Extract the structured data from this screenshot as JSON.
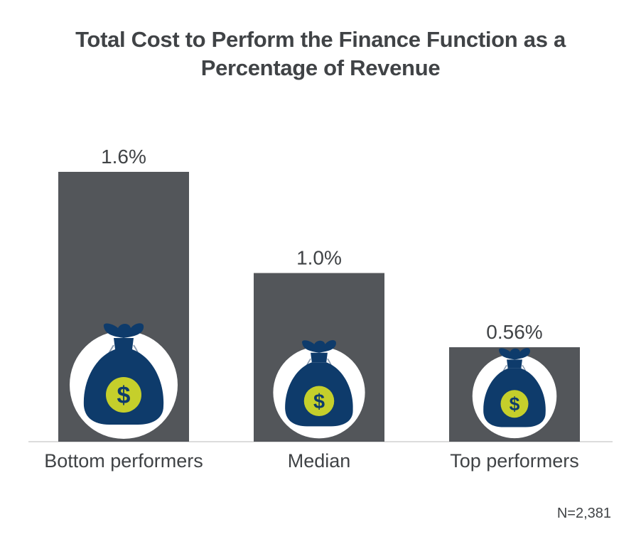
{
  "chart_data": {
    "type": "bar",
    "title_lines": [
      "Total Cost to Perform the Finance Function as a",
      "Percentage of Revenue"
    ],
    "categories": [
      "Bottom performers",
      "Median",
      "Top performers"
    ],
    "values": [
      1.6,
      1.0,
      0.56
    ],
    "value_labels": [
      "1.6%",
      "1.0%",
      "0.56%"
    ],
    "ylim": [
      0,
      2.0
    ],
    "grid": false,
    "legend": "none",
    "note": "N=2,381"
  },
  "colors": {
    "bar": "#53565a",
    "title_text": "#404346",
    "icon_circle": "#ffffff",
    "money_bag": "#0e3b6b",
    "coin": "#c5cf2b",
    "dollar": "#0e3b6b",
    "axis": "#d0d0d0"
  },
  "icons": {
    "bar_badge": "money-bag-icon"
  }
}
